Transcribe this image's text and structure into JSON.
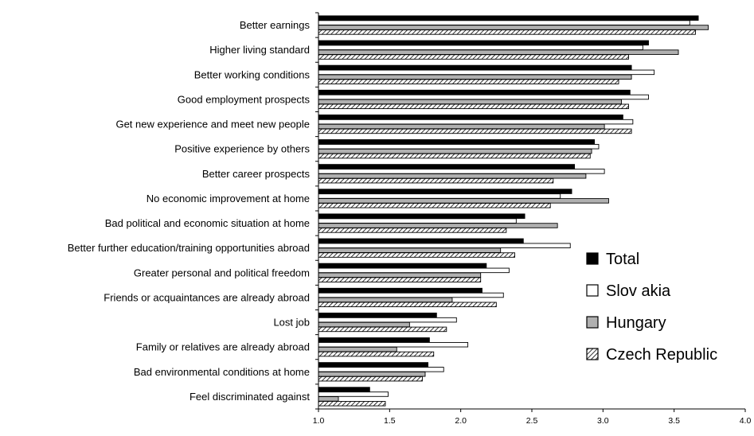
{
  "chart_data": {
    "type": "bar",
    "orientation": "horizontal",
    "categories": [
      "Better earnings",
      "Higher living standard",
      "Better working conditions",
      "Good employment prospects",
      "Get new experience and meet new people",
      "Positive experience by others",
      "Better career prospects",
      "No economic improvement at home",
      "Bad political and economic situation at home",
      "Better further education/training opportunities abroad",
      "Greater personal and political freedom",
      "Friends or acquaintances are already abroad",
      "Lost job",
      "Family or relatives are already abroad",
      "Bad environmental conditions at home",
      "Feel discriminated against"
    ],
    "series": [
      {
        "name": "Total",
        "color": "#000000",
        "values": [
          3.67,
          3.32,
          3.2,
          3.19,
          3.14,
          2.94,
          2.8,
          2.78,
          2.45,
          2.44,
          2.18,
          2.15,
          1.83,
          1.78,
          1.77,
          1.36
        ]
      },
      {
        "name": "Slov akia",
        "color": "#ffffff",
        "values": [
          3.61,
          3.28,
          3.36,
          3.32,
          3.21,
          2.97,
          3.01,
          2.7,
          2.39,
          2.77,
          2.34,
          2.3,
          1.97,
          2.05,
          1.88,
          1.49
        ]
      },
      {
        "name": "Hungary",
        "color": "#b0b0b0",
        "values": [
          3.74,
          3.53,
          3.2,
          3.13,
          3.01,
          2.92,
          2.88,
          3.04,
          2.68,
          2.28,
          2.14,
          1.94,
          1.64,
          1.55,
          1.75,
          1.14
        ]
      },
      {
        "name": "Czech Republic",
        "color": "hatch",
        "values": [
          3.65,
          3.18,
          3.11,
          3.18,
          3.2,
          2.91,
          2.65,
          2.63,
          2.32,
          2.38,
          2.14,
          2.25,
          1.9,
          1.81,
          1.73,
          1.47
        ]
      }
    ],
    "xlim": [
      1.0,
      4.0
    ],
    "xticks": [
      "1.0",
      "1.5",
      "2.0",
      "2.5",
      "3.0",
      "3.5",
      "4.0"
    ],
    "legend_position": "right",
    "grid": false,
    "title": "",
    "xlabel": "",
    "ylabel": ""
  }
}
